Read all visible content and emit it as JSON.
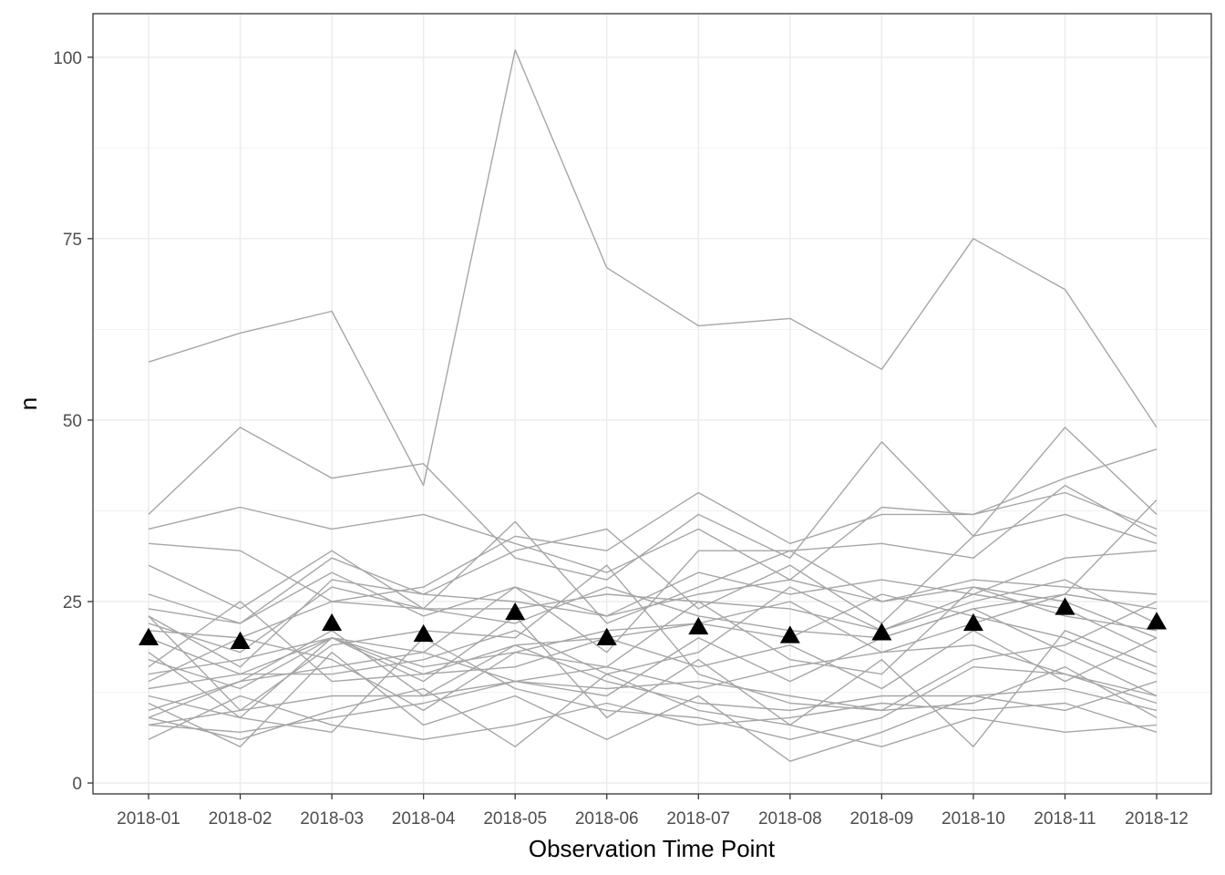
{
  "chart_data": {
    "type": "line",
    "title": "",
    "xlabel": "Observation Time Point",
    "ylabel": "n",
    "categories": [
      "2018-01",
      "2018-02",
      "2018-03",
      "2018-04",
      "2018-05",
      "2018-06",
      "2018-07",
      "2018-08",
      "2018-09",
      "2018-10",
      "2018-11",
      "2018-12"
    ],
    "ylim": [
      -1.5,
      106
    ],
    "yticks": [
      0,
      25,
      50,
      75,
      100
    ],
    "grid": true,
    "legend": "none",
    "line_color": "#a6a6a6",
    "marker_color": "#000000",
    "marker_shape": "triangle",
    "series": [
      {
        "values": [
          58,
          62,
          65,
          41,
          101,
          71,
          63,
          64,
          57,
          75,
          68,
          49
        ]
      },
      {
        "values": [
          37,
          49,
          42,
          44,
          31,
          28,
          37,
          31,
          47,
          34,
          49,
          37
        ]
      },
      {
        "values": [
          35,
          38,
          35,
          37,
          33,
          29,
          35,
          28,
          38,
          37,
          42,
          46
        ]
      },
      {
        "values": [
          33,
          32,
          25,
          27,
          34,
          32,
          40,
          33,
          37,
          37,
          40,
          35
        ]
      },
      {
        "values": [
          30,
          24,
          32,
          24,
          36,
          22,
          27,
          32,
          33,
          31,
          41,
          34
        ]
      },
      {
        "values": [
          26,
          22,
          31,
          26,
          32,
          35,
          24,
          30,
          22,
          34,
          37,
          33
        ]
      },
      {
        "values": [
          24,
          22,
          29,
          23,
          27,
          18,
          32,
          32,
          25,
          28,
          27,
          26
        ]
      },
      {
        "values": [
          23,
          16,
          28,
          26,
          25,
          23,
          29,
          26,
          28,
          26,
          31,
          32
        ]
      },
      {
        "values": [
          22,
          18,
          27,
          24,
          24,
          26,
          25,
          24,
          21,
          25,
          28,
          22
        ]
      },
      {
        "values": [
          21,
          20,
          25,
          24,
          22,
          27,
          23,
          21,
          20,
          24,
          26,
          39
        ]
      },
      {
        "values": [
          20,
          15,
          20,
          18,
          27,
          23,
          26,
          28,
          25,
          27,
          25,
          20
        ]
      },
      {
        "values": [
          16,
          25,
          14,
          15,
          19,
          20,
          22,
          25,
          18,
          22,
          26,
          24
        ]
      },
      {
        "values": [
          15,
          17,
          20,
          16,
          18,
          16,
          25,
          17,
          15,
          27,
          23,
          21
        ]
      },
      {
        "values": [
          14,
          20,
          17,
          10,
          18,
          21,
          22,
          20,
          26,
          23,
          20,
          15
        ]
      },
      {
        "values": [
          13,
          15,
          15,
          17,
          21,
          15,
          18,
          27,
          21,
          26,
          24,
          18
        ]
      },
      {
        "values": [
          12,
          9,
          20,
          15,
          16,
          20,
          16,
          19,
          13,
          21,
          14,
          20
        ]
      },
      {
        "values": [
          10,
          14,
          21,
          12,
          14,
          12,
          20,
          14,
          20,
          24,
          18,
          12
        ]
      },
      {
        "values": [
          9,
          14,
          16,
          18,
          14,
          16,
          13,
          16,
          18,
          19,
          15,
          11
        ]
      },
      {
        "values": [
          8,
          10,
          12,
          12,
          19,
          14,
          11,
          10,
          12,
          12,
          13,
          10
        ]
      },
      {
        "values": [
          8,
          7,
          9,
          11,
          14,
          13,
          14,
          12,
          10,
          11,
          16,
          9
        ]
      },
      {
        "values": [
          6,
          12,
          8,
          6,
          8,
          11,
          8,
          9,
          11,
          10,
          11,
          7
        ]
      },
      {
        "values": [
          11,
          5,
          18,
          8,
          12,
          6,
          12,
          3,
          7,
          12,
          10,
          14
        ]
      },
      {
        "values": [
          9,
          6,
          10,
          13,
          5,
          15,
          10,
          8,
          5,
          9,
          7,
          8
        ]
      },
      {
        "values": [
          18,
          9,
          7,
          20,
          13,
          10,
          9,
          6,
          9,
          16,
          15,
          12
        ]
      },
      {
        "values": [
          17,
          13,
          20,
          14,
          23,
          9,
          17,
          8,
          17,
          5,
          21,
          16
        ]
      },
      {
        "values": [
          23,
          10,
          19,
          21,
          20,
          30,
          15,
          11,
          10,
          17,
          19,
          25
        ]
      }
    ],
    "mean_series": {
      "values": [
        20,
        19.5,
        22,
        20.5,
        23.5,
        20,
        21.5,
        20.3,
        20.7,
        22,
        24.2,
        22.2
      ]
    }
  }
}
